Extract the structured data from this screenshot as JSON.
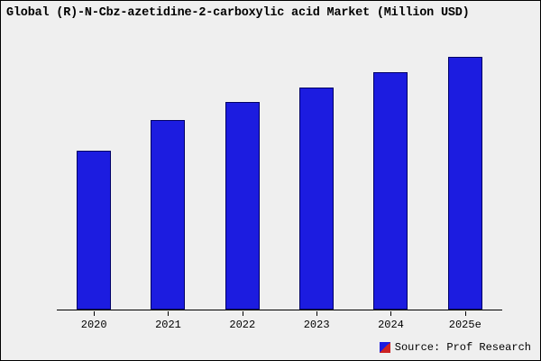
{
  "title": "Global (R)-N-Cbz-azetidine-2-carboxylic acid Market (Million USD)",
  "source": {
    "label": "Source: Prof Research"
  },
  "colors": {
    "background": "#efefef",
    "bar_fill": "#1c1ce0",
    "bar_border": "#000066",
    "axis": "#000000"
  },
  "chart_data": {
    "type": "bar",
    "title": "Global (R)-N-Cbz-azetidine-2-carboxylic acid Market (Million USD)",
    "categories": [
      "2020",
      "2021",
      "2022",
      "2023",
      "2024",
      "2025e"
    ],
    "values": [
      63,
      75,
      82,
      88,
      94,
      100
    ],
    "xlabel": "",
    "ylabel": "",
    "ylim": [
      0,
      105
    ],
    "grid": false,
    "legend_position": "none",
    "y_axis_labels_visible": false
  }
}
